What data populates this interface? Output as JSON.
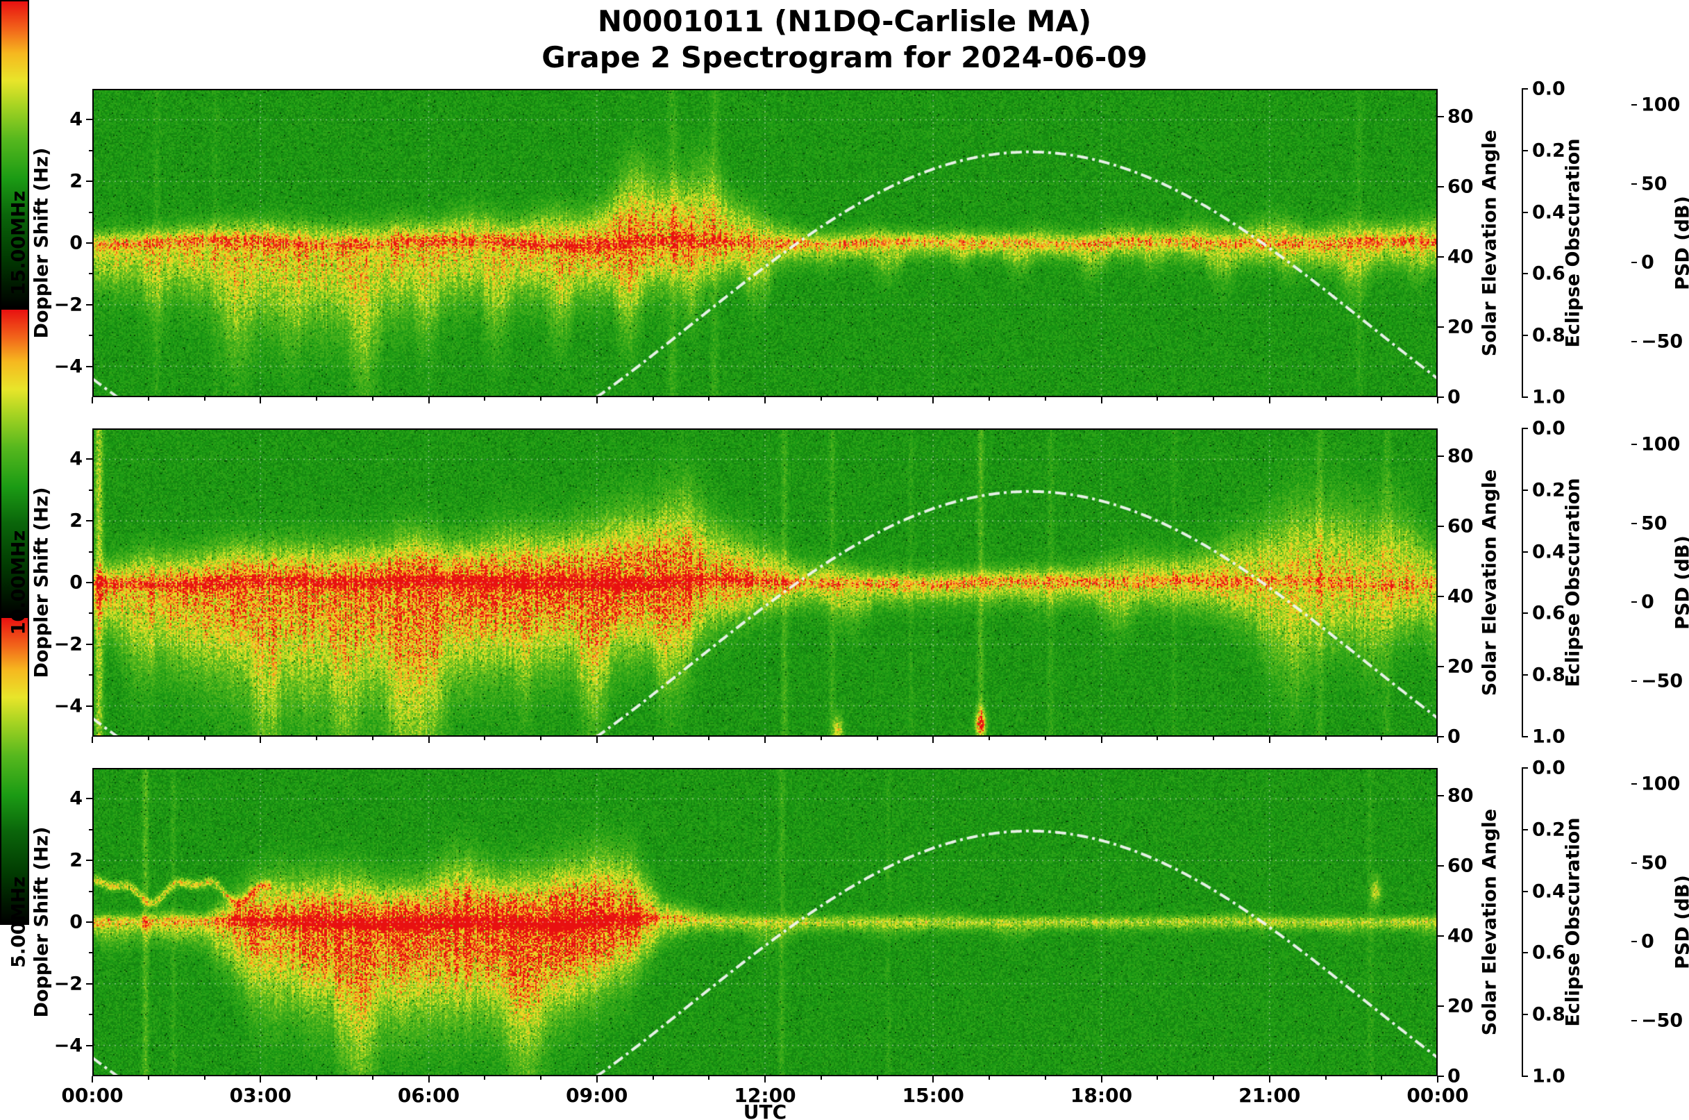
{
  "chart_data": {
    "type": "heatmap",
    "subtype": "doppler-spectrogram",
    "title_line1": "N0001011 (N1DQ-Carlisle MA)",
    "title_line2": "Grape 2 Spectrogram for 2024-06-09",
    "x_axis": {
      "label": "UTC",
      "tick_hours": [
        0,
        3,
        6,
        9,
        12,
        15,
        18,
        21,
        24
      ],
      "tick_labels": [
        "00:00",
        "03:00",
        "06:00",
        "09:00",
        "12:00",
        "15:00",
        "18:00",
        "21:00",
        "00:00"
      ],
      "range_hours": [
        0,
        24
      ]
    },
    "doppler_axis": {
      "label": "Doppler Shift (Hz)",
      "tick_values": [
        4,
        2,
        0,
        -2,
        -4
      ],
      "tick_labels": [
        "4",
        "2",
        "0",
        "−2",
        "−4"
      ],
      "minor_tick_values": [
        3,
        1,
        -1,
        -3
      ],
      "range": [
        -5,
        5
      ]
    },
    "solar_axis": {
      "label": "Solar Elevation Angle",
      "tick_values": [
        0,
        20,
        40,
        60,
        80
      ],
      "tick_labels": [
        "0",
        "20",
        "40",
        "60",
        "80"
      ],
      "range": [
        0,
        88
      ]
    },
    "eclipse_axis": {
      "label": "Eclipse Obscuration",
      "tick_values": [
        0,
        0.2,
        0.4,
        0.6,
        0.8,
        1
      ],
      "tick_labels": [
        "0.0",
        "0.2",
        "0.4",
        "0.6",
        "0.8",
        "1.0"
      ],
      "range": [
        0,
        1
      ],
      "orientation": "0.0 at top, 1.0 at bottom",
      "curve_plotted": false
    },
    "colorbar": {
      "label": "PSD (dB)",
      "tick_values": [
        100,
        50,
        0,
        -50
      ],
      "tick_labels": [
        "100",
        "50",
        "0",
        "−50"
      ],
      "range": [
        -85,
        110
      ]
    },
    "colormap_stops": [
      [
        0.0,
        "#000000"
      ],
      [
        0.16,
        "#013a01"
      ],
      [
        0.3,
        "#0a650a"
      ],
      [
        0.42,
        "#1b9b14"
      ],
      [
        0.55,
        "#57b81e"
      ],
      [
        0.66,
        "#a8d422"
      ],
      [
        0.74,
        "#e8e52a"
      ],
      [
        0.83,
        "#f6b81f"
      ],
      [
        0.91,
        "#f2641a"
      ],
      [
        1.0,
        "#e81010"
      ]
    ],
    "grid": {
      "x_hours": [
        3,
        6,
        9,
        12,
        15,
        18,
        21
      ],
      "y_hz": [
        -4,
        -2,
        0,
        2,
        4
      ],
      "style": "dotted"
    },
    "solar_curve": {
      "sunrise_utc": 9.0,
      "sunset_utc": 24.45,
      "peak_hour_utc": 16.7,
      "peak_elevation_deg": 70,
      "line_style": "dash-dot",
      "color": "#eef4ee"
    },
    "panels": [
      {
        "id": "15mhz",
        "frequency_label": "15.00MHz",
        "seed": 101,
        "band_profile_columns": [
          "hour_utc",
          "intensity",
          "sigma_up_hz",
          "sigma_down_hz",
          "core_intensity"
        ],
        "band_profile": [
          [
            0.0,
            0.55,
            0.3,
            0.8,
            0.28
          ],
          [
            1.5,
            0.58,
            0.35,
            1.05,
            0.3
          ],
          [
            3.0,
            0.62,
            0.45,
            1.6,
            0.34
          ],
          [
            4.5,
            0.6,
            0.45,
            1.7,
            0.3
          ],
          [
            6.0,
            0.6,
            0.4,
            1.3,
            0.34
          ],
          [
            7.5,
            0.63,
            0.45,
            1.1,
            0.4
          ],
          [
            8.8,
            0.68,
            0.65,
            1.0,
            0.42
          ],
          [
            9.8,
            0.78,
            1.1,
            1.0,
            0.44
          ],
          [
            10.8,
            0.74,
            1.2,
            0.9,
            0.4
          ],
          [
            11.6,
            0.6,
            0.75,
            0.6,
            0.32
          ],
          [
            12.5,
            0.5,
            0.3,
            0.4,
            0.3
          ],
          [
            14.0,
            0.48,
            0.25,
            0.35,
            0.28
          ],
          [
            16.0,
            0.47,
            0.25,
            0.3,
            0.27
          ],
          [
            18.0,
            0.49,
            0.28,
            0.35,
            0.28
          ],
          [
            20.0,
            0.5,
            0.3,
            0.4,
            0.28
          ],
          [
            22.0,
            0.53,
            0.38,
            0.52,
            0.3
          ],
          [
            24.0,
            0.55,
            0.4,
            0.55,
            0.3
          ]
        ],
        "spikes": [
          {
            "hour": 1.15,
            "strength": 0.05,
            "width_h": 0.04
          },
          {
            "hour": 2.2,
            "strength": 0.04,
            "width_h": 0.04
          },
          {
            "hour": 10.35,
            "strength": 0.08,
            "width_h": 0.06
          },
          {
            "hour": 11.1,
            "strength": 0.07,
            "width_h": 0.05
          },
          {
            "hour": 22.6,
            "strength": 0.05,
            "width_h": 0.05
          }
        ],
        "dots": []
      },
      {
        "id": "10mhz",
        "frequency_label": "10.00MHz",
        "seed": 202,
        "band_profile_columns": [
          "hour_utc",
          "intensity",
          "sigma_up_hz",
          "sigma_down_hz",
          "core_intensity"
        ],
        "band_profile": [
          [
            0.0,
            0.6,
            0.4,
            0.8,
            0.35
          ],
          [
            1.0,
            0.68,
            0.6,
            1.4,
            0.4
          ],
          [
            2.5,
            0.75,
            0.7,
            2.0,
            0.46
          ],
          [
            4.0,
            0.8,
            0.8,
            2.4,
            0.52
          ],
          [
            5.5,
            0.84,
            0.8,
            2.2,
            0.58
          ],
          [
            7.0,
            0.88,
            0.8,
            1.8,
            0.66
          ],
          [
            8.5,
            0.88,
            0.95,
            1.6,
            0.62
          ],
          [
            9.6,
            0.92,
            1.4,
            1.4,
            0.6
          ],
          [
            10.6,
            0.86,
            1.3,
            1.2,
            0.5
          ],
          [
            11.5,
            0.68,
            0.8,
            0.8,
            0.4
          ],
          [
            12.5,
            0.54,
            0.4,
            0.5,
            0.3
          ],
          [
            14.0,
            0.5,
            0.3,
            0.45,
            0.28
          ],
          [
            16.0,
            0.5,
            0.3,
            0.4,
            0.28
          ],
          [
            18.0,
            0.52,
            0.35,
            0.45,
            0.28
          ],
          [
            20.0,
            0.54,
            0.55,
            0.65,
            0.3
          ],
          [
            21.5,
            0.56,
            1.6,
            1.4,
            0.26
          ],
          [
            23.0,
            0.56,
            1.4,
            1.2,
            0.26
          ],
          [
            24.0,
            0.54,
            0.7,
            0.8,
            0.28
          ]
        ],
        "spikes": [
          {
            "hour": 0.12,
            "strength": 0.28,
            "width_h": 0.05
          },
          {
            "hour": 12.35,
            "strength": 0.1,
            "width_h": 0.04
          },
          {
            "hour": 13.2,
            "strength": 0.08,
            "width_h": 0.04
          },
          {
            "hour": 14.6,
            "strength": 0.05,
            "width_h": 0.03
          },
          {
            "hour": 15.85,
            "strength": 0.13,
            "width_h": 0.04
          },
          {
            "hour": 17.1,
            "strength": 0.06,
            "width_h": 0.04
          },
          {
            "hour": 19.3,
            "strength": 0.05,
            "width_h": 0.03
          },
          {
            "hour": 21.9,
            "strength": 0.08,
            "width_h": 0.05
          },
          {
            "hour": 23.1,
            "strength": 0.07,
            "width_h": 0.05
          }
        ],
        "dots": [
          {
            "hour": 15.85,
            "hz": -4.55,
            "strength": 0.5
          },
          {
            "hour": 13.3,
            "hz": -4.8,
            "strength": 0.3
          }
        ]
      },
      {
        "id": "5mhz",
        "frequency_label": "5.00MHz",
        "seed": 303,
        "band_profile_columns": [
          "hour_utc",
          "intensity",
          "sigma_up_hz",
          "sigma_down_hz",
          "core_intensity"
        ],
        "band_profile": [
          [
            0.0,
            0.4,
            0.15,
            0.3,
            0.26
          ],
          [
            2.0,
            0.45,
            0.2,
            0.5,
            0.3
          ],
          [
            2.8,
            0.78,
            0.7,
            1.4,
            0.55
          ],
          [
            4.0,
            0.9,
            0.8,
            1.8,
            0.7
          ],
          [
            5.5,
            0.94,
            0.8,
            1.9,
            0.75
          ],
          [
            7.0,
            0.95,
            0.9,
            1.8,
            0.76
          ],
          [
            8.2,
            1.0,
            1.05,
            1.7,
            0.8
          ],
          [
            9.0,
            1.0,
            1.3,
            1.4,
            0.78
          ],
          [
            9.6,
            0.88,
            1.15,
            1.0,
            0.58
          ],
          [
            10.2,
            0.5,
            0.4,
            0.4,
            0.3
          ],
          [
            11.0,
            0.34,
            0.2,
            0.25,
            0.2
          ],
          [
            13.0,
            0.3,
            0.15,
            0.2,
            0.17
          ],
          [
            16.0,
            0.29,
            0.13,
            0.18,
            0.15
          ],
          [
            20.0,
            0.29,
            0.13,
            0.18,
            0.15
          ],
          [
            24.0,
            0.3,
            0.14,
            0.2,
            0.16
          ]
        ],
        "spikes": [
          {
            "hour": 0.95,
            "strength": 0.14,
            "width_h": 0.04
          },
          {
            "hour": 1.45,
            "strength": 0.07,
            "width_h": 0.03
          },
          {
            "hour": 12.3,
            "strength": 0.08,
            "width_h": 0.04
          },
          {
            "hour": 14.2,
            "strength": 0.04,
            "width_h": 0.03
          },
          {
            "hour": 22.8,
            "strength": 0.05,
            "width_h": 0.04
          }
        ],
        "dots": [
          {
            "hour": 22.9,
            "hz": 1.0,
            "strength": 0.25
          }
        ],
        "wiggle_trace": {
          "start_hour": 0.0,
          "end_hour": 3.2,
          "center_hz": 1.05,
          "amplitude_hz": 0.3,
          "intensity": 0.33
        }
      }
    ]
  }
}
